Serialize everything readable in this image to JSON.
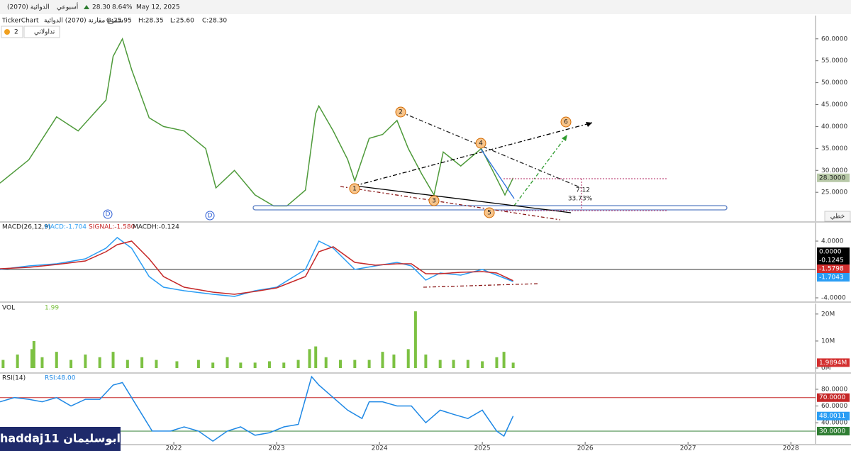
{
  "header": {
    "symbol": "الدوائية (2070)",
    "period": "أسبوعي",
    "price": "28.30",
    "change": "8.64%",
    "date": "May 12, 2025",
    "source": "TickerChart",
    "chart_name": "شموع مقارنة (2070) الدوائية",
    "ohlc": [
      "O:25.95",
      "H:28.35",
      "L:25.60",
      "C:28.30"
    ],
    "alerts": "2",
    "portfolio": "تداولاتي",
    "mode": "خطي",
    "author": "haddaj11 ابوسليمان"
  },
  "chart_data": [
    {
      "type": "line",
      "xlim": [
        2020.31,
        2028.24
      ],
      "ylim": [
        18.4,
        65.3
      ],
      "yticks": [
        {
          "value": 25,
          "label": "25.0000"
        },
        {
          "value": 30,
          "label": "30.0000"
        },
        {
          "value": 35,
          "label": "35.0000"
        },
        {
          "value": 40,
          "label": "40.0000"
        },
        {
          "value": 45,
          "label": "45.0000"
        },
        {
          "value": 50,
          "label": "50.0000"
        },
        {
          "value": 55,
          "label": "55.0000"
        },
        {
          "value": 60,
          "label": "60.0000"
        }
      ],
      "x": [
        2020.31,
        2020.59,
        2020.86,
        2021.07,
        2021.34,
        2021.41,
        2021.5,
        2021.59,
        2021.76,
        2021.9,
        2022.1,
        2022.31,
        2022.41,
        2022.59,
        2022.79,
        2022.97,
        2023.1,
        2023.28,
        2023.38,
        2023.41,
        2023.55,
        2023.69,
        2023.76,
        2023.9,
        2024.03,
        2024.17,
        2024.28,
        2024.41,
        2024.53,
        2024.62,
        2024.79,
        2024.99,
        2025.1,
        2025.22,
        2025.3
      ],
      "series": [
        {
          "color": "#4e9a3a",
          "values": [
            27.1,
            32.4,
            42.2,
            39,
            46,
            56,
            60,
            53,
            42,
            40,
            39,
            35,
            26,
            30,
            24.4,
            21.9,
            21.9,
            25.5,
            43,
            44.7,
            39,
            32.5,
            27.6,
            37.3,
            38.2,
            41.4,
            35,
            29.2,
            24.4,
            34.2,
            31,
            35,
            30,
            24.4,
            28.3
          ]
        }
      ],
      "last_labels": [
        {
          "value": 28.3,
          "label": "28.3000",
          "color": "#b8c9a8"
        }
      ],
      "annotations": [
        "1",
        "2",
        "3",
        "4",
        "5",
        "6",
        "7.12",
        "33.73%",
        "D",
        "D"
      ]
    },
    {
      "type": "line",
      "title": "MACD(26,12,9)",
      "xlim": [
        2020.31,
        2028.24
      ],
      "ylim": [
        -4.5,
        6.6
      ],
      "yticks": [
        {
          "value": 4,
          "label": "4.0000"
        },
        {
          "value": -4,
          "label": "-4.0000"
        }
      ],
      "x": [
        2020.31,
        2020.59,
        2020.86,
        2021.14,
        2021.34,
        2021.45,
        2021.59,
        2021.76,
        2021.9,
        2022.1,
        2022.38,
        2022.59,
        2022.79,
        2023.0,
        2023.28,
        2023.41,
        2023.55,
        2023.76,
        2023.96,
        2024.17,
        2024.31,
        2024.45,
        2024.59,
        2024.79,
        2025.0,
        2025.14,
        2025.3
      ],
      "series": [
        {
          "name": "MACD:-1.704",
          "color": "#2a9df4",
          "values": [
            0,
            0.5,
            0.8,
            1.5,
            3,
            4.5,
            3,
            -1,
            -2.5,
            -3,
            -3.5,
            -3.8,
            -3,
            -2.5,
            0,
            4,
            3,
            0,
            0.5,
            1,
            0.5,
            -1.5,
            -0.5,
            -0.8,
            0,
            -0.8,
            -1.704
          ]
        },
        {
          "name": "SIGNAL:-1.580",
          "color": "#c62828",
          "values": [
            0.1,
            0.3,
            0.7,
            1.2,
            2.5,
            3.5,
            4,
            1.5,
            -1,
            -2.5,
            -3.2,
            -3.5,
            -3.1,
            -2.6,
            -1,
            2.5,
            3.2,
            1,
            0.6,
            0.8,
            0.8,
            -0.6,
            -0.6,
            -0.4,
            -0.3,
            -0.5,
            -1.58
          ]
        }
      ],
      "histogram_label": "MACDH:-0.124",
      "last_labels": [
        {
          "value": 0,
          "label": "0.0000",
          "color": "#000000"
        },
        {
          "value": -0.1245,
          "label": "-0.1245",
          "color": "#000000"
        },
        {
          "value": -1.5798,
          "label": "-1.5798",
          "color": "#d32f2f"
        },
        {
          "value": -1.7043,
          "label": "-1.7043",
          "color": "#2a9df4"
        }
      ]
    },
    {
      "type": "bar",
      "title": "VOL",
      "xlim": [
        2020.31,
        2028.24
      ],
      "ylim": [
        -1580000,
        23900000
      ],
      "yticks": [
        {
          "value": 0,
          "label": "0M"
        },
        {
          "value": 10000000,
          "label": "10M"
        },
        {
          "value": 20000000,
          "label": "20M"
        }
      ],
      "x": [
        2020.34,
        2020.48,
        2020.62,
        2020.64,
        2020.72,
        2020.86,
        2021.0,
        2021.14,
        2021.28,
        2021.41,
        2021.55,
        2021.69,
        2021.83,
        2022.03,
        2022.24,
        2022.38,
        2022.52,
        2022.65,
        2022.79,
        2022.93,
        2023.07,
        2023.21,
        2023.32,
        2023.38,
        2023.48,
        2023.62,
        2023.76,
        2023.9,
        2024.03,
        2024.14,
        2024.28,
        2024.35,
        2024.45,
        2024.59,
        2024.72,
        2024.86,
        2025.0,
        2025.14,
        2025.21,
        2025.3
      ],
      "series": [
        {
          "name": "1.99",
          "color": "#7cc142",
          "values": [
            3000000,
            5000000,
            7000000,
            10000000,
            4000000,
            6000000,
            3000000,
            5000000,
            4000000,
            6000000,
            3000000,
            4000000,
            3000000,
            2500000,
            3000000,
            2000000,
            4000000,
            2000000,
            2000000,
            2500000,
            2000000,
            3000000,
            7000000,
            8000000,
            4000000,
            3000000,
            3000000,
            3000000,
            6000000,
            5000000,
            7000000,
            21000000,
            5000000,
            3000000,
            3000000,
            3000000,
            2500000,
            4000000,
            6000000,
            1989400
          ]
        }
      ],
      "last_labels": [
        {
          "value": 1989400,
          "label": "1.9894M",
          "color": "#d32f2f"
        }
      ]
    },
    {
      "type": "line",
      "title": "RSI(14)",
      "xlim": [
        2020.31,
        2028.24
      ],
      "ylim": [
        14.7,
        98.6
      ],
      "yticks": [
        {
          "value": 40,
          "label": "40.0000"
        },
        {
          "value": 60,
          "label": "60.0000"
        },
        {
          "value": 80,
          "label": "80.0000"
        }
      ],
      "xticks": [
        2022,
        2023,
        2024,
        2025,
        2026,
        2027,
        2028
      ],
      "x": [
        2020.31,
        2020.45,
        2020.59,
        2020.72,
        2020.86,
        2021.0,
        2021.14,
        2021.28,
        2021.41,
        2021.5,
        2021.59,
        2021.69,
        2021.79,
        2021.97,
        2022.1,
        2022.24,
        2022.38,
        2022.52,
        2022.65,
        2022.79,
        2022.93,
        2023.07,
        2023.21,
        2023.34,
        2023.41,
        2023.55,
        2023.69,
        2023.83,
        2023.9,
        2024.03,
        2024.17,
        2024.31,
        2024.45,
        2024.59,
        2024.72,
        2024.86,
        2025.0,
        2025.14,
        2025.21,
        2025.3
      ],
      "series": [
        {
          "name": "RSI:48.00",
          "color": "#1e88e5",
          "values": [
            65,
            70,
            68,
            65,
            70,
            60,
            68,
            68,
            85,
            88,
            70,
            50,
            30,
            30,
            35,
            30,
            18,
            30,
            35,
            25,
            28,
            35,
            38,
            95,
            85,
            70,
            55,
            45,
            65,
            65,
            60,
            60,
            40,
            55,
            50,
            45,
            55,
            30,
            24,
            48
          ]
        }
      ],
      "levels": [
        {
          "value": 70,
          "label": "70.0000",
          "color": "#c62828"
        },
        {
          "value": 30,
          "label": "30.0000",
          "color": "#2e7d32"
        }
      ],
      "last_labels": [
        {
          "value": 48,
          "label": "48.0011",
          "color": "#2a9df4"
        }
      ]
    }
  ]
}
